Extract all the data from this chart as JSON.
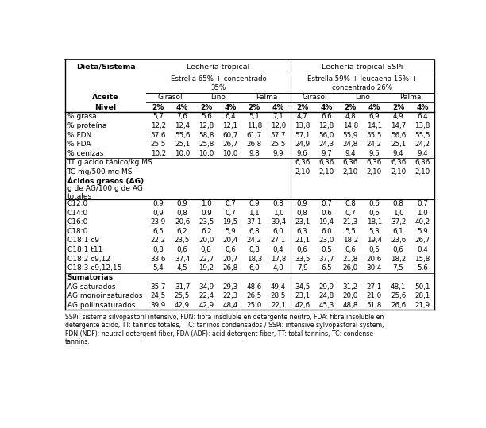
{
  "title_footnote": "SSPi: sistema silvopastoril intensivo, FDN: fibra insoluble en detergente neutro, FDA: fibra insoluble en\ndetergente ácido, TT: taninos totales,  TC: taninos condensados / SSPi: intensive sylvopastoral system,\nFDN (NDF): neutral detergent fiber, FDA (ADF): acid detergent fiber, TT: total tannins, TC: condense\ntannins.",
  "col_header_1": "Dieta/Sistema",
  "col_header_2": "Lechería tropical",
  "col_header_3": "Lechería tropical SSPi",
  "col_header_2b": "Estrella 65% + concentrado\n35%",
  "col_header_3b": "Estrella 59% + leucaena 15% +\nconcentrado 26%",
  "aceite_label": "Aceite",
  "nivel_label": "Nivel",
  "oils": [
    "Girasol",
    "Lino",
    "Palma"
  ],
  "levels": [
    "2%",
    "4%",
    "2%",
    "4%",
    "2%",
    "4%"
  ],
  "row_labels": [
    "% grasa",
    "% proteína",
    "% FDN",
    "% FDA",
    "% cenizas",
    "TT g ácido tánico/kg MS",
    "TC mg/500 mg MS",
    "Ácidos grasos (AG)",
    "g de AG/100 g de AG\ntotales",
    "C12:0",
    "C14:0",
    "C16:0",
    "C18:0",
    "C18:1 c9",
    "C18:1 t11",
    "C18:2 c9,12",
    "C18:3 c9,12,15",
    "Sumatorias",
    "AG saturados",
    "AG monoinsaturados",
    "AG poliinsaturados"
  ],
  "bold_label_rows": [
    7,
    17
  ],
  "no_data_rows": [
    7,
    8,
    17
  ],
  "thin_line_after": [
    4,
    16
  ],
  "thick_line_after": [
    8
  ],
  "two_line_rows": [
    8
  ],
  "data": [
    [
      "5,7",
      "7,6",
      "5,6",
      "6,4",
      "5,1",
      "7,1",
      "4,7",
      "6,6",
      "4,8",
      "6,9",
      "4,9",
      "6,4"
    ],
    [
      "12,2",
      "12,4",
      "12,8",
      "12,1",
      "11,8",
      "12,0",
      "13,8",
      "12,8",
      "14,8",
      "14,1",
      "14,7",
      "13,8"
    ],
    [
      "57,6",
      "55,6",
      "58,8",
      "60,7",
      "61,7",
      "57,7",
      "57,1",
      "56,0",
      "55,9",
      "55,5",
      "56,6",
      "55,5"
    ],
    [
      "25,5",
      "25,1",
      "25,8",
      "26,7",
      "26,8",
      "25,5",
      "24,9",
      "24,3",
      "24,8",
      "24,2",
      "25,1",
      "24,2"
    ],
    [
      "10,2",
      "10,0",
      "10,0",
      "10,0",
      "9,8",
      "9,9",
      "9,6",
      "9,7",
      "9,4",
      "9,5",
      "9,4",
      "9,4"
    ],
    [
      "",
      "",
      "",
      "",
      "",
      "",
      "6,36",
      "6,36",
      "6,36",
      "6,36",
      "6,36",
      "6,36"
    ],
    [
      "",
      "",
      "",
      "",
      "",
      "",
      "2,10",
      "2,10",
      "2,10",
      "2,10",
      "2,10",
      "2,10"
    ],
    [
      "",
      "",
      "",
      "",
      "",
      "",
      "",
      "",
      "",
      "",
      "",
      ""
    ],
    [
      "",
      "",
      "",
      "",
      "",
      "",
      "",
      "",
      "",
      "",
      "",
      ""
    ],
    [
      "0,9",
      "0,9",
      "1,0",
      "0,7",
      "0,9",
      "0,8",
      "0,9",
      "0,7",
      "0,8",
      "0,6",
      "0,8",
      "0,7"
    ],
    [
      "0,9",
      "0,8",
      "0,9",
      "0,7",
      "1,1",
      "1,0",
      "0,8",
      "0,6",
      "0,7",
      "0,6",
      "1,0",
      "1,0"
    ],
    [
      "23,9",
      "20,6",
      "23,5",
      "19,5",
      "37,1",
      "39,4",
      "23,1",
      "19,4",
      "21,3",
      "18,1",
      "37,2",
      "40,2"
    ],
    [
      "6,5",
      "6,2",
      "6,2",
      "5,9",
      "6,8",
      "6,0",
      "6,3",
      "6,0",
      "5,5",
      "5,3",
      "6,1",
      "5,9"
    ],
    [
      "22,2",
      "23,5",
      "20,0",
      "20,4",
      "24,2",
      "27,1",
      "21,1",
      "23,0",
      "18,2",
      "19,4",
      "23,6",
      "26,7"
    ],
    [
      "0,8",
      "0,6",
      "0,8",
      "0,6",
      "0,8",
      "0,4",
      "0,6",
      "0,5",
      "0,6",
      "0,5",
      "0,6",
      "0,4"
    ],
    [
      "33,6",
      "37,4",
      "22,7",
      "20,7",
      "18,3",
      "17,8",
      "33,5",
      "37,7",
      "21,8",
      "20,6",
      "18,2",
      "15,8"
    ],
    [
      "5,4",
      "4,5",
      "19,2",
      "26,8",
      "6,0",
      "4,0",
      "7,9",
      "6,5",
      "26,0",
      "30,4",
      "7,5",
      "5,6"
    ],
    [
      "",
      "",
      "",
      "",
      "",
      "",
      "",
      "",
      "",
      "",
      "",
      ""
    ],
    [
      "35,7",
      "31,7",
      "34,9",
      "29,3",
      "48,6",
      "49,4",
      "34,5",
      "29,9",
      "31,2",
      "27,1",
      "48,1",
      "50,1"
    ],
    [
      "24,5",
      "25,5",
      "22,4",
      "22,3",
      "26,5",
      "28,5",
      "23,1",
      "24,8",
      "20,0",
      "21,0",
      "25,6",
      "28,1"
    ],
    [
      "39,9",
      "42,9",
      "42,9",
      "48,4",
      "25,0",
      "22,1",
      "42,6",
      "45,3",
      "48,8",
      "51,8",
      "26,6",
      "21,9"
    ]
  ],
  "bg_color": "white"
}
